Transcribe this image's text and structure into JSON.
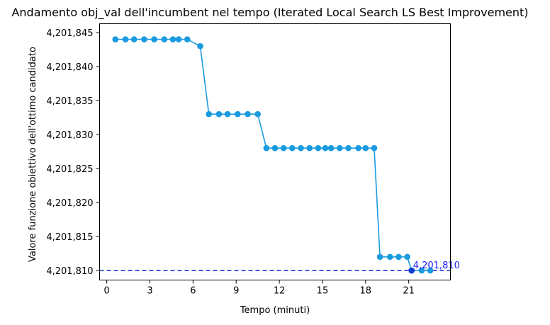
{
  "chart_data": {
    "type": "line",
    "title": "Andamento obj_val dell'incumbent nel tempo (Iterated Local Search LS Best Improvement)",
    "xlabel": "Tempo (minuti)",
    "ylabel": "Valore funzione obiettivo dell'ottimo candidato",
    "xlim": [
      -0.5,
      23.9
    ],
    "ylim": [
      4201808.6,
      4201846.3
    ],
    "x_ticks": [
      0,
      3,
      6,
      9,
      12,
      15,
      18,
      21
    ],
    "x_tick_labels": [
      "0",
      "3",
      "6",
      "9",
      "12",
      "15",
      "18",
      "21"
    ],
    "y_ticks": [
      4201810,
      4201815,
      4201820,
      4201825,
      4201830,
      4201835,
      4201840,
      4201845
    ],
    "y_tick_labels": [
      "4,201,810",
      "4,201,815",
      "4,201,820",
      "4,201,825",
      "4,201,830",
      "4,201,835",
      "4,201,840",
      "4,201,845"
    ],
    "grid": false,
    "series": [
      {
        "color": "#1a9be0",
        "x": [
          0.6,
          1.3,
          1.9,
          2.6,
          3.3,
          4.0,
          4.6,
          5.0,
          5.6,
          6.5,
          7.1,
          7.8,
          8.4,
          9.1,
          9.8,
          10.5,
          11.1,
          11.7,
          12.3,
          12.9,
          13.5,
          14.1,
          14.7,
          15.2,
          15.6,
          16.2,
          16.8,
          17.5,
          18.0,
          18.6,
          19.0,
          19.7,
          20.3,
          20.9,
          21.2,
          21.9,
          22.5
        ],
        "y": [
          4201844,
          4201844,
          4201844,
          4201844,
          4201844,
          4201844,
          4201844,
          4201844,
          4201844,
          4201843,
          4201833,
          4201833,
          4201833,
          4201833,
          4201833,
          4201833,
          4201828,
          4201828,
          4201828,
          4201828,
          4201828,
          4201828,
          4201828,
          4201828,
          4201828,
          4201828,
          4201828,
          4201828,
          4201828,
          4201828,
          4201812,
          4201812,
          4201812,
          4201812,
          4201810,
          4201810,
          4201810
        ]
      }
    ],
    "best": {
      "x": 21.2,
      "y": 4201810,
      "label": "4,201,810",
      "color": "#1a1aff",
      "marker_color": "#0c3fd0"
    },
    "hline": {
      "y": 4201810,
      "color": "#1f36cf",
      "style": "dashed"
    }
  }
}
